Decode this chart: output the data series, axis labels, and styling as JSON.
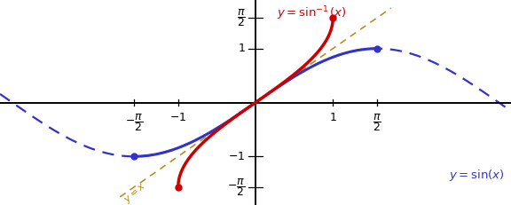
{
  "xlim": [
    -3.3,
    3.3
  ],
  "ylim": [
    -1.9,
    1.9
  ],
  "x_data_range": 6.6,
  "y_data_range": 3.8,
  "sin_color": "#3333cc",
  "arcsin_color": "#cc0000",
  "diagonal_color": "#b8860b",
  "background": "#ffffff",
  "tick_label_color": "#000000",
  "pi_over_2": 1.5707963267948966,
  "figsize": [
    5.76,
    2.31
  ],
  "dpi": 100
}
